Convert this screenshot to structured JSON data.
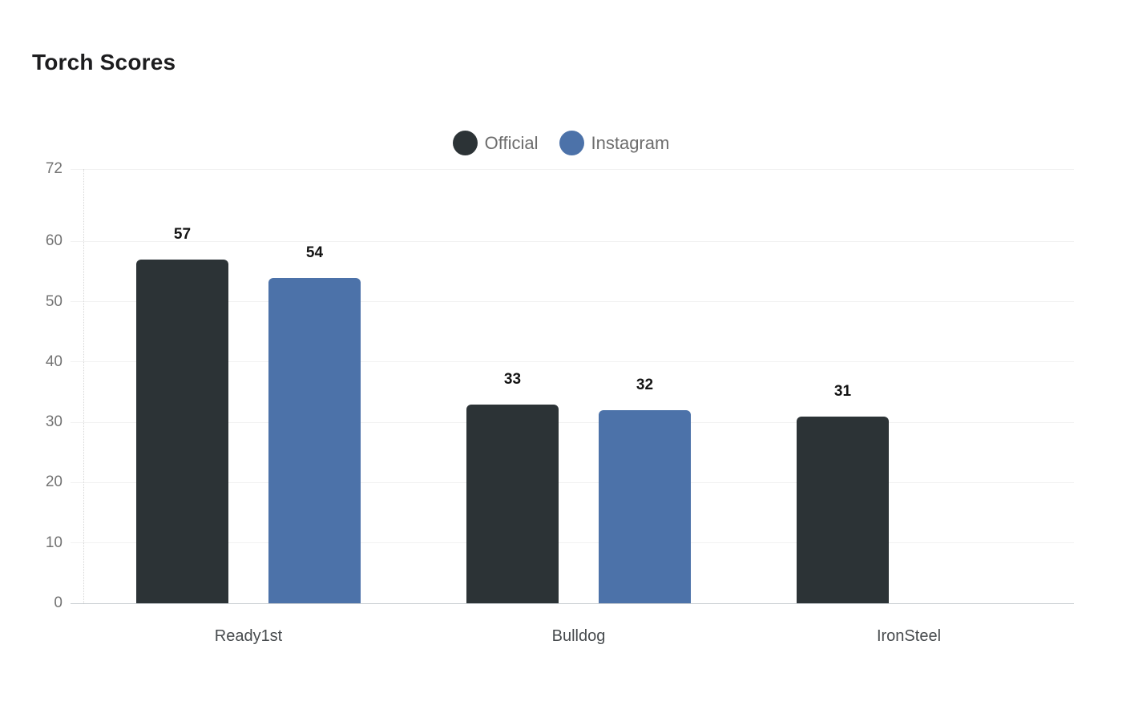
{
  "chart_data": {
    "type": "bar",
    "title": "Torch Scores",
    "categories": [
      "Ready1st",
      "Bulldog",
      "IronSteel"
    ],
    "series": [
      {
        "name": "Official",
        "color": "#2c3336",
        "values": [
          57,
          33,
          31
        ]
      },
      {
        "name": "Instagram",
        "color": "#4c72a9",
        "values": [
          54,
          32,
          null
        ]
      }
    ],
    "xlabel": "",
    "ylabel": "",
    "ylim": [
      0,
      72
    ],
    "yticks": [
      0,
      10,
      20,
      30,
      40,
      50,
      60,
      72
    ],
    "grid": true,
    "legend_position": "top-center",
    "value_labels_shown": true,
    "background_color": "#ffffff",
    "grid_color": "#f1f1f1",
    "baseline_color": "#caced2",
    "axis_line_color": "#d6d6d6",
    "title_color": "#1d1d1f",
    "tick_label_color": "#737373",
    "category_label_color": "#474b4e",
    "value_label_color": "#141414",
    "legend_text_color": "#6d6d6d"
  }
}
